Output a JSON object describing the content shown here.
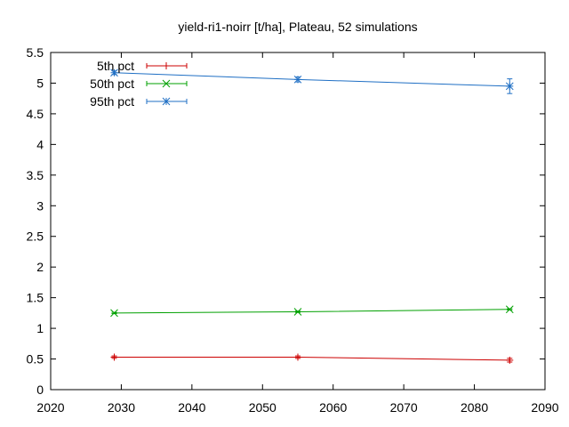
{
  "chart_data": {
    "type": "line",
    "title": "yield-ri1-noirr [t/ha], Plateau, 52 simulations",
    "xlabel": "",
    "ylabel": "",
    "xlim": [
      2020,
      2090
    ],
    "ylim": [
      0,
      5.5
    ],
    "xticks": [
      "2020",
      "2030",
      "2040",
      "2050",
      "2060",
      "2070",
      "2080",
      "2090"
    ],
    "yticks": [
      "0",
      "0.5",
      "1",
      "1.5",
      "2",
      "2.5",
      "3",
      "3.5",
      "4",
      "4.5",
      "5",
      "5.5"
    ],
    "grid": false,
    "legend_position": "top-left",
    "x": [
      2029,
      2055,
      2085
    ],
    "series": [
      {
        "name": "5th pct",
        "color": "#cc0000",
        "marker": "plus",
        "values": [
          0.53,
          0.53,
          0.48
        ],
        "errors": [
          0.02,
          0.02,
          0.03
        ]
      },
      {
        "name": "50th pct",
        "color": "#00a000",
        "marker": "cross",
        "values": [
          1.25,
          1.27,
          1.31
        ],
        "errors": [
          0.01,
          0.01,
          0.01
        ]
      },
      {
        "name": "95th pct",
        "color": "#1f6fc4",
        "marker": "star",
        "values": [
          5.17,
          5.06,
          4.95
        ],
        "errors": [
          0.03,
          0.04,
          0.12
        ]
      }
    ]
  }
}
